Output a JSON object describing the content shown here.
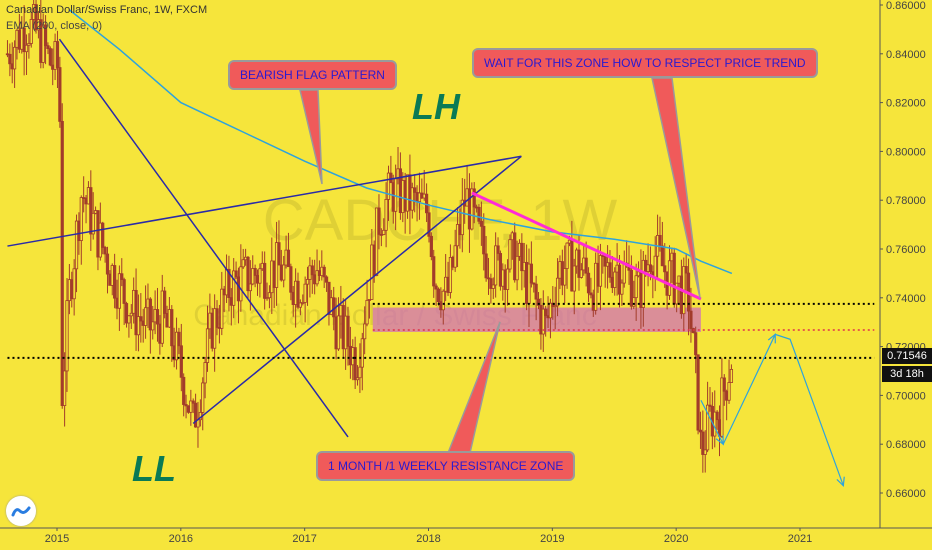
{
  "legend": {
    "symbol_line": "Canadian Dollar/Swiss Franc, 1W, FXCM",
    "indicator_line": "EMA (200, close, 0)"
  },
  "watermark": {
    "big": "CADCHF, 1W",
    "small": "Canadian Dollar / Swiss Franc"
  },
  "annotations": {
    "bearish_flag": "BEARISH FLAG PATTERN",
    "wait_zone": "WAIT FOR THIS ZONE HOW TO RESPECT PRICE TREND",
    "resistance_zone": "1 MONTH /1 WEEKLY RESISTANCE ZONE",
    "lh": "LH",
    "ll": "LL"
  },
  "price_axis": {
    "current_price": "0.71546",
    "countdown": "3d 18h"
  },
  "colors": {
    "background": "#f6e53b",
    "candle_body": "#a23c2a",
    "ema": "#2ea3dc",
    "trendline": "#2a2aa8",
    "magenta_line": "#ff2bd6",
    "zone": "#d070b8",
    "callout": "#f05a5a"
  },
  "chart_data": {
    "type": "candlestick",
    "title": "Canadian Dollar/Swiss Franc, 1W, FXCM",
    "ylim": [
      0.645,
      0.865
    ],
    "xlim": [
      2014.6,
      2021.6
    ],
    "y_ticks": [
      0.66,
      0.68,
      0.7,
      0.72,
      0.74,
      0.76,
      0.78,
      0.8,
      0.82,
      0.84,
      0.86
    ],
    "y_tick_labels": [
      "0.66000",
      "0.68000",
      "0.70000",
      "0.72000",
      "0.74000",
      "0.76000",
      "0.78000",
      "0.80000",
      "0.82000",
      "0.84000",
      "0.86000"
    ],
    "x_ticks": [
      2015,
      2016,
      2017,
      2018,
      2019,
      2020,
      2021
    ],
    "x_tick_labels": [
      "2015",
      "2016",
      "2017",
      "2018",
      "2019",
      "2020",
      "2021"
    ],
    "price_path": [
      [
        2014.6,
        0.84
      ],
      [
        2014.75,
        0.852
      ],
      [
        2014.85,
        0.848
      ],
      [
        2014.95,
        0.836
      ],
      [
        2015.02,
        0.834
      ],
      [
        2015.04,
        0.7
      ],
      [
        2015.1,
        0.742
      ],
      [
        2015.2,
        0.784
      ],
      [
        2015.3,
        0.77
      ],
      [
        2015.45,
        0.75
      ],
      [
        2015.6,
        0.735
      ],
      [
        2015.75,
        0.728
      ],
      [
        2015.85,
        0.732
      ],
      [
        2015.95,
        0.72
      ],
      [
        2016.03,
        0.704
      ],
      [
        2016.1,
        0.688
      ],
      [
        2016.25,
        0.728
      ],
      [
        2016.4,
        0.745
      ],
      [
        2016.6,
        0.75
      ],
      [
        2016.8,
        0.752
      ],
      [
        2016.95,
        0.745
      ],
      [
        2017.1,
        0.752
      ],
      [
        2017.25,
        0.73
      ],
      [
        2017.35,
        0.722
      ],
      [
        2017.42,
        0.714
      ],
      [
        2017.5,
        0.74
      ],
      [
        2017.6,
        0.772
      ],
      [
        2017.7,
        0.784
      ],
      [
        2017.85,
        0.78
      ],
      [
        2018.0,
        0.775
      ],
      [
        2018.05,
        0.748
      ],
      [
        2018.15,
        0.74
      ],
      [
        2018.3,
        0.782
      ],
      [
        2018.45,
        0.758
      ],
      [
        2018.55,
        0.752
      ],
      [
        2018.7,
        0.757
      ],
      [
        2018.85,
        0.74
      ],
      [
        2018.95,
        0.728
      ],
      [
        2019.05,
        0.752
      ],
      [
        2019.2,
        0.754
      ],
      [
        2019.35,
        0.744
      ],
      [
        2019.5,
        0.754
      ],
      [
        2019.6,
        0.75
      ],
      [
        2019.7,
        0.742
      ],
      [
        2019.8,
        0.76
      ],
      [
        2019.9,
        0.752
      ],
      [
        2020.0,
        0.746
      ],
      [
        2020.1,
        0.74
      ],
      [
        2020.17,
        0.7
      ],
      [
        2020.2,
        0.676
      ],
      [
        2020.27,
        0.69
      ],
      [
        2020.35,
        0.694
      ],
      [
        2020.45,
        0.716
      ]
    ],
    "ema_200": [
      [
        2015.1,
        0.858
      ],
      [
        2015.5,
        0.842
      ],
      [
        2016.0,
        0.82
      ],
      [
        2016.5,
        0.808
      ],
      [
        2017.0,
        0.796
      ],
      [
        2017.5,
        0.785
      ],
      [
        2018.0,
        0.778
      ],
      [
        2018.5,
        0.772
      ],
      [
        2019.0,
        0.767
      ],
      [
        2019.5,
        0.764
      ],
      [
        2020.0,
        0.76
      ],
      [
        2020.2,
        0.755
      ],
      [
        2020.45,
        0.75
      ]
    ],
    "resistance_zone": {
      "y0": 0.726,
      "y1": 0.736,
      "x0": 2017.55,
      "x1": 2020.2
    },
    "levels": [
      {
        "y": 0.7375,
        "x0": 2017.55,
        "x1": 2021.6,
        "style": "dotted-black"
      },
      {
        "y": 0.7268,
        "x0": 2017.55,
        "x1": 2021.6,
        "style": "dotted-red"
      },
      {
        "y": 0.7154,
        "x0": 2017.4,
        "x1": 2021.6,
        "style": "dotted-black"
      },
      {
        "y": 0.7154,
        "x0": 2014.6,
        "x1": 2017.4,
        "style": "dotted-black"
      }
    ],
    "trendlines": [
      {
        "from": [
          2014.6,
          0.7612
        ],
        "to": [
          2018.75,
          0.798
        ],
        "color": "trendline"
      },
      {
        "from": [
          2016.1,
          0.6885
        ],
        "to": [
          2018.75,
          0.798
        ],
        "color": "trendline"
      },
      {
        "from": [
          2015.02,
          0.846
        ],
        "to": [
          2017.35,
          0.683
        ],
        "color": "trendline"
      },
      {
        "from": [
          2018.35,
          0.783
        ],
        "to": [
          2020.2,
          0.7395
        ],
        "color": "magenta_line",
        "width": 3
      }
    ],
    "projection": [
      [
        2020.2,
        0.698
      ],
      [
        2020.38,
        0.68
      ],
      [
        2020.8,
        0.725
      ],
      [
        2020.92,
        0.723
      ],
      [
        2021.35,
        0.663
      ]
    ]
  }
}
